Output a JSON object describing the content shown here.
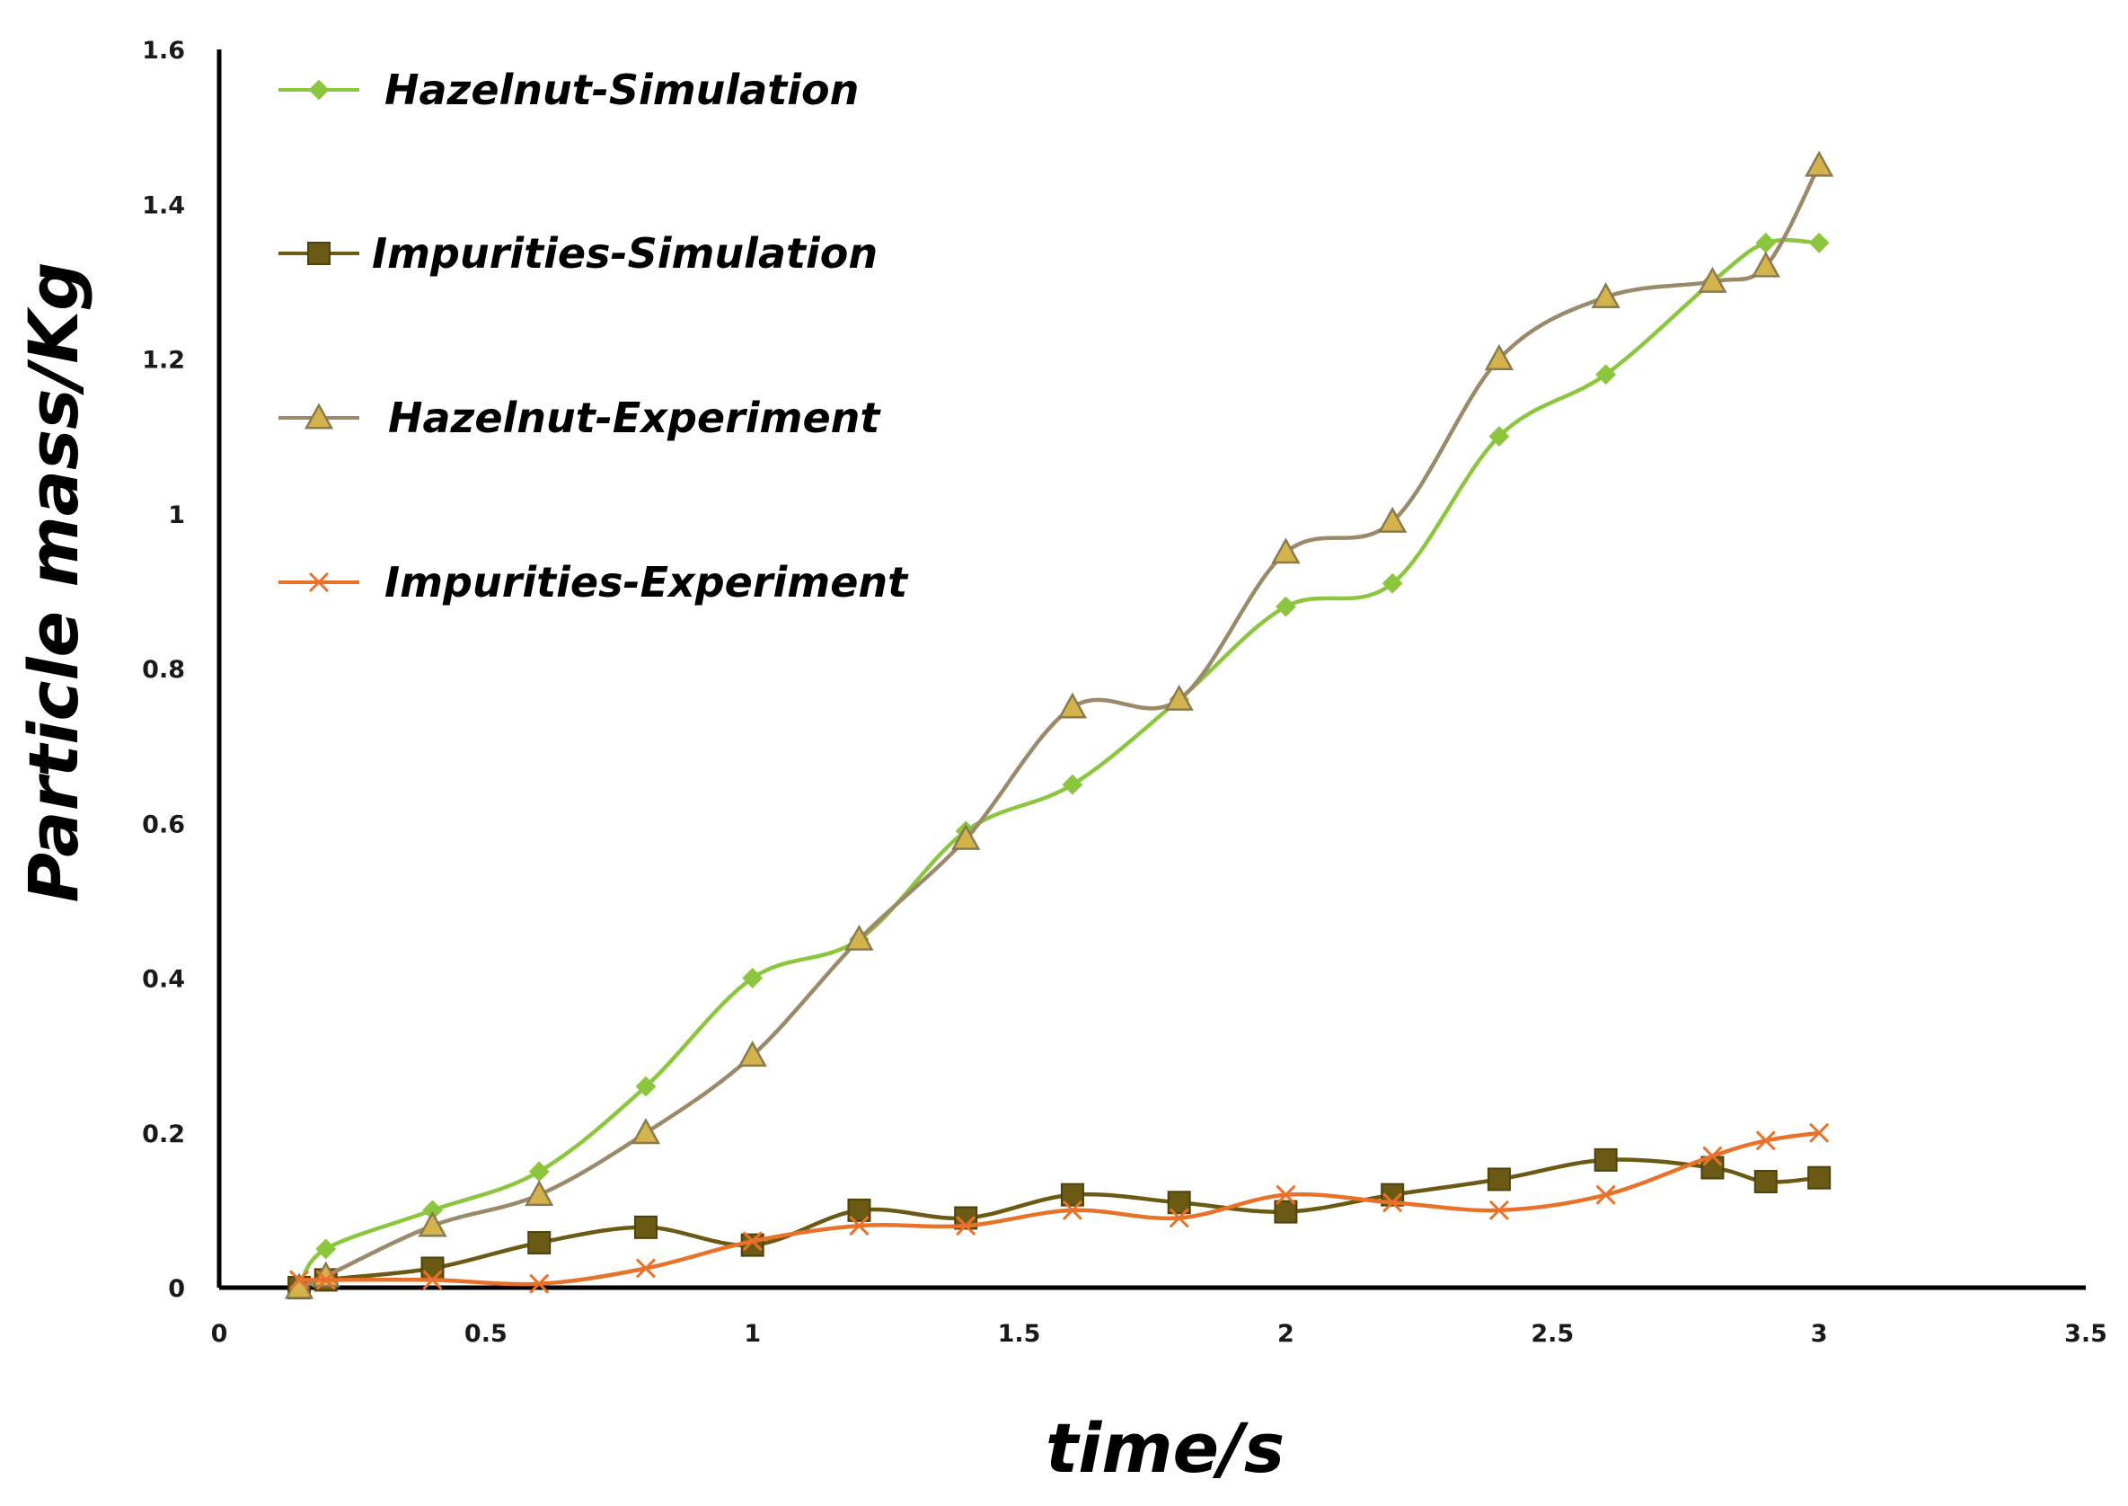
{
  "chart_data": {
    "type": "line",
    "title": "",
    "xlabel": "time/s",
    "ylabel": "Particle mass/Kg",
    "xlim": [
      0,
      3.5
    ],
    "ylim": [
      0,
      1.6
    ],
    "xticks": [
      "0",
      "0.5",
      "1",
      "1.5",
      "2",
      "2.5",
      "3",
      "3.5"
    ],
    "yticks": [
      "0",
      "0.2",
      "0.4",
      "0.6",
      "0.8",
      "1",
      "1.2",
      "1.4",
      "1.6"
    ],
    "grid": false,
    "legend_position": "top-left",
    "series": [
      {
        "name": "Hazelnut-Simulation",
        "color": "#8cc63f",
        "marker": "diamond",
        "x": [
          0.15,
          0.2,
          0.4,
          0.6,
          0.8,
          1.0,
          1.2,
          1.4,
          1.6,
          1.8,
          2.0,
          2.2,
          2.4,
          2.6,
          2.8,
          2.9,
          3.0
        ],
        "y": [
          0.0,
          0.05,
          0.1,
          0.15,
          0.26,
          0.4,
          0.45,
          0.59,
          0.65,
          0.76,
          0.88,
          0.91,
          1.1,
          1.18,
          1.3,
          1.35,
          1.35
        ]
      },
      {
        "name": "Impurities-Simulation",
        "color": "#6b5a14",
        "marker": "square",
        "x": [
          0.15,
          0.2,
          0.4,
          0.6,
          0.8,
          1.0,
          1.2,
          1.4,
          1.6,
          1.8,
          2.0,
          2.2,
          2.4,
          2.6,
          2.8,
          2.9,
          3.0
        ],
        "y": [
          0.0,
          0.01,
          0.025,
          0.058,
          0.078,
          0.055,
          0.1,
          0.09,
          0.12,
          0.11,
          0.098,
          0.12,
          0.14,
          0.165,
          0.155,
          0.137,
          0.142
        ]
      },
      {
        "name": "Hazelnut-Experiment",
        "color": "#9a8a6a",
        "marker_fill": "#d4b24c",
        "marker": "triangle",
        "x": [
          0.15,
          0.2,
          0.4,
          0.6,
          0.8,
          1.0,
          1.2,
          1.4,
          1.6,
          1.8,
          2.0,
          2.2,
          2.4,
          2.6,
          2.8,
          2.9,
          3.0
        ],
        "y": [
          0.0,
          0.015,
          0.08,
          0.12,
          0.2,
          0.3,
          0.45,
          0.58,
          0.75,
          0.76,
          0.95,
          0.99,
          1.2,
          1.28,
          1.3,
          1.32,
          1.45
        ]
      },
      {
        "name": "Impurities-Experiment",
        "color": "#e8722a",
        "marker": "x",
        "x": [
          0.15,
          0.2,
          0.4,
          0.6,
          0.8,
          1.0,
          1.2,
          1.4,
          1.6,
          1.8,
          2.0,
          2.2,
          2.4,
          2.6,
          2.8,
          2.9,
          3.0
        ],
        "y": [
          0.01,
          0.01,
          0.01,
          0.005,
          0.025,
          0.06,
          0.08,
          0.08,
          0.1,
          0.09,
          0.12,
          0.11,
          0.1,
          0.12,
          0.17,
          0.19,
          0.2
        ]
      }
    ]
  }
}
